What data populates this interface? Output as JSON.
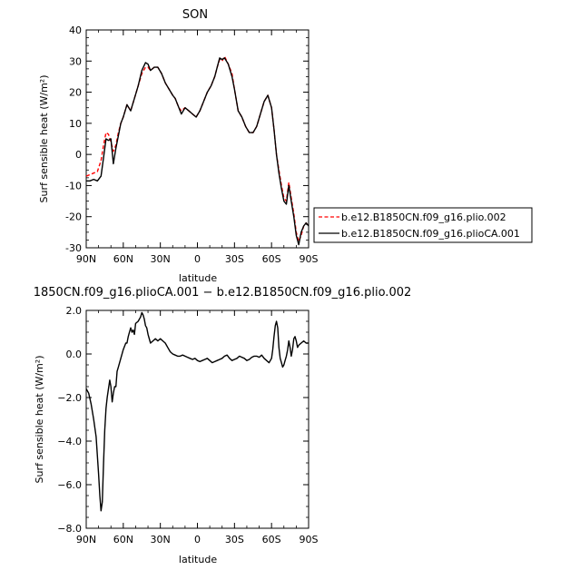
{
  "chart_data": [
    {
      "type": "line",
      "title": "SON",
      "xlabel": "latitude",
      "ylabel": "Surf sensible heat (W/m²)",
      "xlim": [
        90,
        -90
      ],
      "ylim": [
        -30,
        40
      ],
      "x_ticks": [
        90,
        60,
        30,
        0,
        -30,
        -60,
        -90
      ],
      "x_tick_labels": [
        "90N",
        "60N",
        "30N",
        "0",
        "30S",
        "60S",
        "90S"
      ],
      "y_ticks": [
        -30,
        -20,
        -10,
        0,
        10,
        20,
        30,
        40
      ],
      "y_tick_labels": [
        "-30",
        "-20",
        "-10",
        "0",
        "10",
        "20",
        "30",
        "40"
      ],
      "legend_position": "right",
      "series": [
        {
          "name": "b.e12.B1850CN.f09_g16.plio.002",
          "color": "#ff0000",
          "dash": "dashed",
          "x": [
            90,
            87,
            84,
            81,
            78,
            76,
            74,
            72,
            70,
            68,
            66,
            64,
            62,
            60,
            57,
            54,
            51,
            48,
            45,
            42,
            40,
            38,
            35,
            32,
            29,
            26,
            23,
            20,
            18,
            15,
            13,
            10,
            7,
            4,
            1,
            -2,
            -5,
            -8,
            -11,
            -14,
            -16,
            -18,
            -20,
            -22,
            -25,
            -28,
            -30,
            -33,
            -36,
            -39,
            -42,
            -45,
            -48,
            -51,
            -54,
            -57,
            -60,
            -62,
            -64,
            -66,
            -68,
            -70,
            -72,
            -74,
            -76,
            -78,
            -80,
            -82,
            -84,
            -86,
            -88,
            -90
          ],
          "y": [
            -7,
            -6.5,
            -6,
            -5.5,
            -2,
            3,
            7,
            6.5,
            4,
            1,
            3,
            7,
            10,
            12,
            16,
            14,
            18,
            22,
            26,
            28,
            28,
            27,
            28,
            28,
            26,
            23,
            21,
            19,
            18,
            15,
            14,
            15,
            14,
            13,
            12,
            14,
            17,
            20,
            22,
            25,
            28,
            30.5,
            30,
            31.5,
            29,
            26,
            21,
            14,
            12,
            9,
            7,
            7,
            9,
            13,
            17,
            19,
            15,
            8,
            0,
            -5,
            -10,
            -14,
            -15,
            -9,
            -14,
            -19,
            -25,
            -28,
            -26,
            -23,
            -22,
            -23
          ]
        },
        {
          "name": "b.e12.B1850CN.f09_g16.plioCA.001",
          "color": "#000000",
          "dash": "solid",
          "x": [
            90,
            87,
            84,
            81,
            78,
            76,
            74,
            72,
            70,
            68,
            66,
            64,
            62,
            60,
            57,
            54,
            51,
            48,
            45,
            42,
            40,
            38,
            35,
            32,
            29,
            26,
            23,
            20,
            18,
            15,
            13,
            10,
            7,
            4,
            1,
            -2,
            -5,
            -8,
            -11,
            -14,
            -16,
            -18,
            -20,
            -22,
            -25,
            -28,
            -30,
            -33,
            -36,
            -39,
            -42,
            -45,
            -48,
            -51,
            -54,
            -57,
            -60,
            -62,
            -64,
            -66,
            -68,
            -70,
            -72,
            -74,
            -76,
            -78,
            -80,
            -82,
            -84,
            -86,
            -88,
            -90
          ],
          "y": [
            -8.5,
            -8.5,
            -8,
            -8.5,
            -7,
            -1,
            5,
            4.5,
            5,
            -3,
            2,
            6,
            10,
            12,
            16,
            14,
            18,
            22,
            27,
            29.5,
            29,
            27,
            28,
            28,
            26,
            23,
            21,
            19,
            18,
            15,
            13,
            15,
            14,
            13,
            12,
            14,
            17,
            20,
            22,
            25,
            28,
            31,
            30.5,
            31,
            29,
            25,
            21,
            14,
            12,
            9,
            7,
            7,
            9,
            13,
            17,
            19,
            15,
            8,
            0,
            -6,
            -11,
            -15,
            -16,
            -10,
            -15,
            -20,
            -26,
            -29,
            -25,
            -23,
            -22,
            -23
          ]
        }
      ]
    },
    {
      "type": "line",
      "title": "1850CN.f09_g16.plioCA.001 − b.e12.B1850CN.f09_g16.plio.002",
      "xlabel": "latitude",
      "ylabel": "Surf sensible heat (W/m²)",
      "xlim": [
        90,
        -90
      ],
      "ylim": [
        -8,
        2
      ],
      "x_ticks": [
        90,
        60,
        30,
        0,
        -30,
        -60,
        -90
      ],
      "x_tick_labels": [
        "90N",
        "60N",
        "30N",
        "0",
        "30S",
        "60S",
        "90S"
      ],
      "y_ticks": [
        -8,
        -6,
        -4,
        -2,
        0,
        2
      ],
      "y_tick_labels": [
        "−8.0",
        "−6.0",
        "−4.0",
        "−2.0",
        "0.0",
        "2.0"
      ],
      "series": [
        {
          "color": "#000000",
          "dash": "solid",
          "x": [
            90,
            88,
            86,
            84,
            82,
            80,
            79,
            78,
            77,
            76,
            75,
            74,
            73,
            72,
            71,
            70,
            69,
            68,
            67,
            66,
            65,
            64,
            62,
            60,
            58,
            57,
            56,
            55,
            54,
            53,
            52,
            51,
            50,
            48,
            46,
            45,
            44,
            43,
            42,
            41,
            40,
            38,
            36,
            34,
            32,
            30,
            28,
            26,
            24,
            22,
            20,
            18,
            16,
            14,
            12,
            10,
            8,
            6,
            4,
            2,
            0,
            -2,
            -4,
            -6,
            -8,
            -10,
            -12,
            -14,
            -16,
            -18,
            -20,
            -22,
            -24,
            -26,
            -28,
            -30,
            -32,
            -34,
            -36,
            -38,
            -40,
            -42,
            -44,
            -46,
            -48,
            -50,
            -52,
            -54,
            -56,
            -58,
            -60,
            -61,
            -62,
            -63,
            -64,
            -65,
            -66,
            -67,
            -68,
            -69,
            -70,
            -71,
            -72,
            -73,
            -74,
            -75,
            -76,
            -77,
            -78,
            -79,
            -80,
            -81,
            -82,
            -84,
            -86,
            -88,
            -90
          ],
          "y": [
            -1.6,
            -1.8,
            -2.3,
            -3,
            -3.8,
            -5.5,
            -6.5,
            -7.2,
            -6.8,
            -5,
            -3.5,
            -2.5,
            -2,
            -1.6,
            -1.2,
            -1.5,
            -2.2,
            -1.8,
            -1.5,
            -1.5,
            -0.8,
            -0.6,
            -0.2,
            0.2,
            0.5,
            0.5,
            0.8,
            1.0,
            1.2,
            1.0,
            1.1,
            0.9,
            1.4,
            1.5,
            1.7,
            1.9,
            1.8,
            1.6,
            1.3,
            1.2,
            0.9,
            0.5,
            0.6,
            0.7,
            0.6,
            0.7,
            0.6,
            0.5,
            0.3,
            0.1,
            0.0,
            -0.05,
            -0.1,
            -0.1,
            -0.05,
            -0.1,
            -0.15,
            -0.2,
            -0.25,
            -0.2,
            -0.3,
            -0.35,
            -0.3,
            -0.25,
            -0.2,
            -0.3,
            -0.4,
            -0.35,
            -0.3,
            -0.25,
            -0.2,
            -0.1,
            -0.05,
            -0.2,
            -0.3,
            -0.25,
            -0.2,
            -0.1,
            -0.15,
            -0.2,
            -0.3,
            -0.25,
            -0.15,
            -0.1,
            -0.1,
            -0.15,
            -0.05,
            -0.2,
            -0.3,
            -0.4,
            -0.2,
            0.2,
            0.8,
            1.3,
            1.5,
            1.2,
            0.3,
            -0.2,
            -0.4,
            -0.6,
            -0.5,
            -0.3,
            -0.1,
            0.2,
            0.6,
            0.3,
            -0.1,
            0.2,
            0.7,
            0.8,
            0.6,
            0.3,
            0.4,
            0.5,
            0.6,
            0.5,
            0.5
          ]
        }
      ]
    }
  ]
}
